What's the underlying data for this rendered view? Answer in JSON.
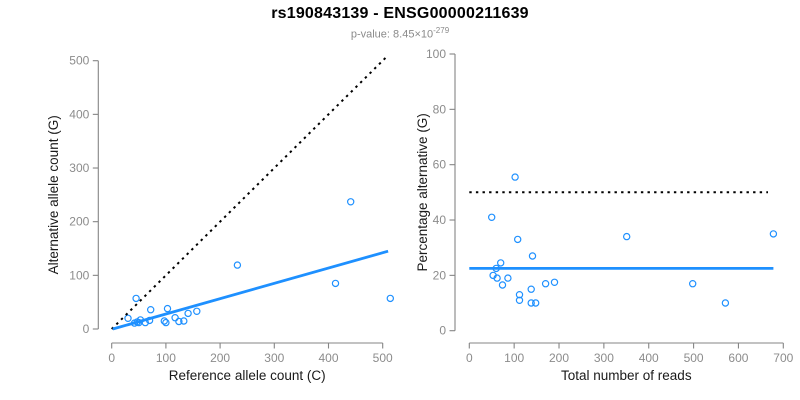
{
  "header": {
    "title": "rs190843139 - ENSG00000211639",
    "pvalue_label": "p-value: ",
    "pvalue_mantissa": "8.45",
    "pvalue_times": "×",
    "pvalue_base": "10",
    "pvalue_exponent": "-279"
  },
  "colors": {
    "accent_blue": "#1E90FF",
    "axis_line": "#858585",
    "tick_text": "#8c8c8c",
    "axis_title_text": "#1a1a1a",
    "identity_line": "#000000"
  },
  "chart_data": [
    {
      "type": "scatter",
      "name": "allele-count-scatter",
      "xlabel": "Reference allele count (C)",
      "ylabel": "Alternative allele count (G)",
      "xlim": [
        0,
        500
      ],
      "ylim": [
        0,
        500
      ],
      "xticks": [
        0,
        100,
        200,
        300,
        400,
        500
      ],
      "yticks": [
        0,
        100,
        200,
        300,
        400,
        500
      ],
      "grid": false,
      "legend": null,
      "points": [
        [
          30,
          20
        ],
        [
          42,
          11
        ],
        [
          45,
          57
        ],
        [
          47,
          13
        ],
        [
          50,
          12
        ],
        [
          53,
          17
        ],
        [
          62,
          12
        ],
        [
          70,
          16
        ],
        [
          72,
          36
        ],
        [
          97,
          15
        ],
        [
          100,
          12
        ],
        [
          103,
          38
        ],
        [
          117,
          21
        ],
        [
          124,
          14
        ],
        [
          133,
          15
        ],
        [
          141,
          29
        ],
        [
          157,
          33
        ],
        [
          232,
          119
        ],
        [
          413,
          85
        ],
        [
          441,
          237
        ],
        [
          514,
          57
        ]
      ],
      "lines": [
        {
          "name": "identity-line",
          "style": "dotted",
          "color": "#000000",
          "x": [
            0,
            507
          ],
          "y": [
            0,
            507
          ]
        },
        {
          "name": "regression-line",
          "style": "solid",
          "color": "#1E90FF",
          "x": [
            2,
            510
          ],
          "y": [
            0,
            145
          ]
        }
      ]
    },
    {
      "type": "scatter",
      "name": "percentage-scatter",
      "xlabel": "Total number of reads",
      "ylabel": "Percentage alternative (G)",
      "xlim": [
        0,
        700
      ],
      "ylim": [
        0,
        100
      ],
      "xticks": [
        0,
        100,
        200,
        300,
        400,
        500,
        600,
        700
      ],
      "yticks": [
        0,
        20,
        40,
        60,
        80,
        100
      ],
      "grid": false,
      "legend": null,
      "points": [
        [
          50,
          41
        ],
        [
          53,
          20
        ],
        [
          60,
          22.5
        ],
        [
          62,
          19
        ],
        [
          70,
          24.5
        ],
        [
          74,
          16.5
        ],
        [
          86,
          19
        ],
        [
          102,
          55.5
        ],
        [
          108,
          33
        ],
        [
          112,
          13
        ],
        [
          112,
          11
        ],
        [
          138,
          15
        ],
        [
          138,
          10
        ],
        [
          141,
          27
        ],
        [
          148,
          10
        ],
        [
          170,
          17
        ],
        [
          190,
          17.5
        ],
        [
          351,
          34
        ],
        [
          498,
          17
        ],
        [
          571,
          10
        ],
        [
          678,
          35
        ]
      ],
      "lines": [
        {
          "name": "fifty-percent-line",
          "style": "dotted",
          "color": "#000000",
          "x": [
            0,
            666
          ],
          "y": [
            50,
            50
          ]
        },
        {
          "name": "mean-percentage-line",
          "style": "solid",
          "color": "#1E90FF",
          "x": [
            0,
            678
          ],
          "y": [
            22.5,
            22.5
          ]
        }
      ]
    }
  ]
}
